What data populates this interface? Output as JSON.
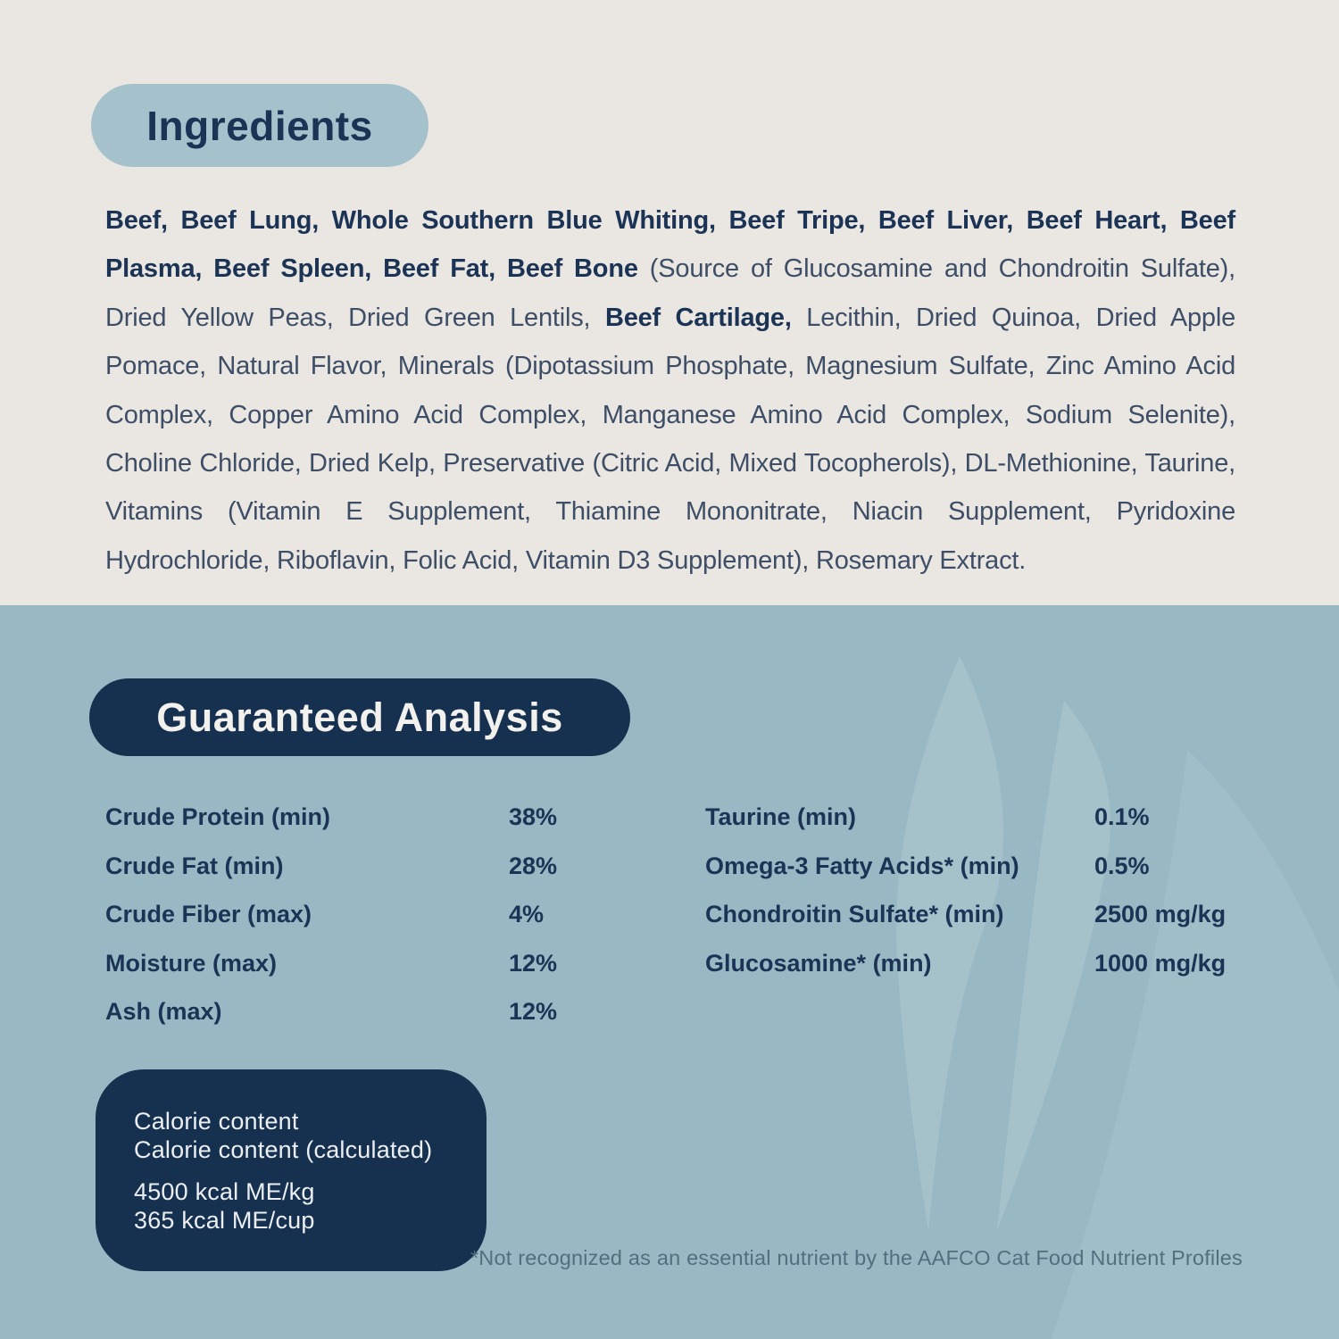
{
  "ingredients": {
    "title": "Ingredients",
    "segments": [
      {
        "bold": true,
        "text": "Beef, Beef Lung, Whole Southern Blue Whiting, Beef Tripe, Beef Liver, Beef Heart, Beef Plasma, Beef Spleen, Beef Fat, Beef Bone"
      },
      {
        "bold": false,
        "text": " (Source of Glucosamine and Chondroitin Sulfate), Dried Yellow Peas, Dried Green Lentils, "
      },
      {
        "bold": true,
        "text": "Beef Cartilage,"
      },
      {
        "bold": false,
        "text": " Lecithin, Dried Quinoa, Dried Apple Pomace, Natural Flavor, Minerals (Dipotassium Phosphate, Magnesium Sulfate, Zinc Amino Acid Complex, Copper Amino Acid Complex, Manganese Amino Acid Complex, Sodium Selenite), Choline Chloride, Dried Kelp, Preservative (Citric Acid, Mixed Tocopherols), DL-Methionine, Taurine, Vitamins (Vitamin E Supplement, Thiamine Mononitrate, Niacin Supplement, Pyridoxine Hydrochloride, Riboflavin, Folic Acid, Vitamin D3 Supplement), Rosemary Extract."
      }
    ]
  },
  "guaranteed_analysis": {
    "title": "Guaranteed Analysis",
    "rows_left": [
      {
        "label": "Crude Protein (min)",
        "value": "38%"
      },
      {
        "label": "Crude Fat (min)",
        "value": "28%"
      },
      {
        "label": "Crude Fiber (max)",
        "value": "4%"
      },
      {
        "label": "Moisture (max)",
        "value": "12%"
      },
      {
        "label": "Ash (max)",
        "value": "12%"
      }
    ],
    "rows_right": [
      {
        "label": "Taurine (min)",
        "value": "0.1%"
      },
      {
        "label": "Omega-3 Fatty Acids* (min)",
        "value": "0.5%"
      },
      {
        "label": "Chondroitin Sulfate* (min)",
        "value": "2500 mg/kg"
      },
      {
        "label": "Glucosamine* (min)",
        "value": "1000 mg/kg"
      }
    ]
  },
  "calorie_content": {
    "heading_line1": "Calorie content",
    "heading_line2": "Calorie content (calculated)",
    "value_line1": "4500 kcal ME/kg",
    "value_line2": "365 kcal ME/cup"
  },
  "footnote": "*Not recognized as an essential nutrient by the AAFCO Cat Food Nutrient Profiles",
  "colors": {
    "top_background": "#EAE6E1",
    "bottom_background": "#98B9C4",
    "light_pill": "#A5C2CC",
    "navy_fill": "#16304F",
    "navy_text": "#1B3355",
    "paragraph_text": "#3D4E66",
    "footnote_text": "#50707F",
    "pill_dark_text": "#F2F1ED"
  }
}
